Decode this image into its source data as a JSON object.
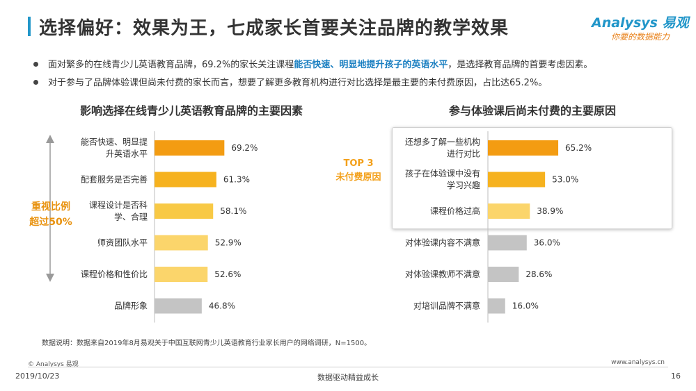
{
  "title": "选择偏好：效果为王，七成家长首要关注品牌的教学效果",
  "logo": {
    "main": "Analysys 易观",
    "sub": "你要的数据能力"
  },
  "bullets": [
    {
      "before": "面对繁多的在线青少儿英语教育品牌，69.2%的家长关注课程",
      "highlight": "能否快速、明显地提升孩子的英语水平",
      "after": "，是选择教育品牌的首要考虑因素。"
    },
    {
      "text": "对于参与了品牌体验课但尚未付费的家长而言，想要了解更多教育机构进行对比选择是最主要的未付费原因，占比达65.2%。"
    }
  ],
  "side_label": {
    "line1": "重视比例",
    "line2": "超过50%"
  },
  "top3_label": {
    "line1": "TOP 3",
    "line2": "未付费原因"
  },
  "chart_data": [
    {
      "type": "bar",
      "orientation": "horizontal",
      "title": "影响选择在线青少儿英语教育品牌的主要因素",
      "categories": [
        [
          "能否快速、明显提",
          "升英语水平"
        ],
        [
          "配套服务是否完善"
        ],
        [
          "课程设计是否科",
          "学、合理"
        ],
        [
          "师资团队水平"
        ],
        [
          "课程价格和性价比"
        ],
        [
          "品牌形象"
        ]
      ],
      "values": [
        69.2,
        61.3,
        58.1,
        52.9,
        52.6,
        46.8
      ],
      "labels": [
        "69.2%",
        "61.3%",
        "58.1%",
        "52.9%",
        "52.6%",
        "46.8%"
      ],
      "unit": "%",
      "colors": [
        "#f39c12",
        "#f6b21f",
        "#f8c945",
        "#fbd56b",
        "#fbd56b",
        "#c4c4c4"
      ]
    },
    {
      "type": "bar",
      "orientation": "horizontal",
      "title": "参与体验课后尚未付费的主要原因",
      "categories": [
        [
          "还想多了解一些机构",
          "进行对比"
        ],
        [
          "孩子在体验课中没有",
          "学习兴趣"
        ],
        [
          "课程价格过高"
        ],
        [
          "对体验课内容不满意"
        ],
        [
          "对体验课教师不满意"
        ],
        [
          "对培训品牌不满意"
        ]
      ],
      "values": [
        65.2,
        53.0,
        38.9,
        36.0,
        28.6,
        16.0
      ],
      "labels": [
        "65.2%",
        "53.0%",
        "38.9%",
        "36.0%",
        "28.6%",
        "16.0%"
      ],
      "unit": "%",
      "colors": [
        "#f39c12",
        "#f6b21f",
        "#fbd56b",
        "#c4c4c4",
        "#c4c4c4",
        "#c4c4c4"
      ]
    }
  ],
  "footnote": "数据说明：数据来自2019年8月易观关于中国互联网青少儿英语教育行业家长用户的网络调研，N=1500。",
  "copyright": "© Analysys 易观",
  "website": "www.analysys.cn",
  "date": "2019/10/23",
  "slogan": "数据驱动精益成长",
  "page_number": "16",
  "accent_color": "#2196c9"
}
